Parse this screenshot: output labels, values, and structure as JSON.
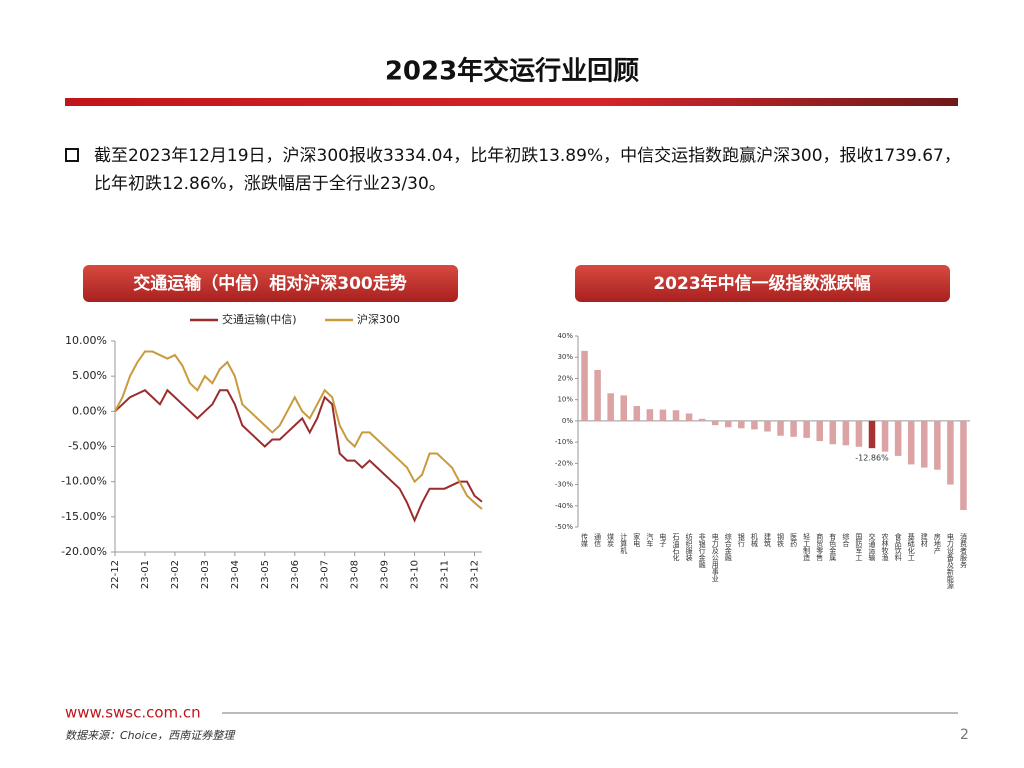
{
  "header": {
    "title": "2023年交运行业回顾"
  },
  "bullet": "截至2023年12月19日，沪深300报收3334.04，比年初跌13.89%，中信交运指数跑赢沪深300，报收1739.67，比年初跌12.86%，涨跌幅居于全行业23/30。",
  "chart_data": [
    {
      "type": "line",
      "title": "交通运输（中信）相对沪深300走势",
      "categories": [
        "22-12",
        null,
        null,
        null,
        "23-01",
        null,
        null,
        null,
        "23-02",
        null,
        null,
        null,
        "23-03",
        null,
        null,
        null,
        "23-04",
        null,
        null,
        null,
        "23-05",
        null,
        null,
        null,
        "23-06",
        null,
        null,
        null,
        "23-07",
        null,
        null,
        null,
        "23-08",
        null,
        null,
        null,
        "23-09",
        null,
        null,
        null,
        "23-10",
        null,
        null,
        null,
        "23-11",
        null,
        null,
        null,
        "23-12",
        null
      ],
      "series": [
        {
          "name": "交通运输(中信)",
          "color": "#9b2c2c",
          "values": [
            0,
            1,
            2,
            2.5,
            3,
            2,
            1,
            3,
            2,
            1,
            0,
            -1,
            0,
            1,
            3,
            3,
            1,
            -2,
            -3,
            -4,
            -5,
            -4,
            -4,
            -3,
            -2,
            -1,
            -3,
            -1,
            2,
            1,
            -6,
            -7,
            -7,
            -8,
            -7,
            -8,
            -9,
            -10,
            -11,
            -13,
            -15.5,
            -13,
            -11,
            -11,
            -11,
            -10.5,
            -10,
            -10,
            -12,
            -12.86
          ]
        },
        {
          "name": "沪深300",
          "color": "#c99a3e",
          "values": [
            0,
            2,
            5,
            7,
            8.5,
            8.5,
            8,
            7.5,
            8,
            6.5,
            4,
            3,
            5,
            4,
            6,
            7,
            5,
            1,
            0,
            -1,
            -2,
            -3,
            -2,
            0,
            2,
            0,
            -1,
            1,
            3,
            2,
            -2,
            -4,
            -5,
            -3,
            -3,
            -4,
            -5,
            -6,
            -7,
            -8,
            -10,
            -9,
            -6,
            -6,
            -7,
            -8,
            -10,
            -12,
            -13,
            -13.89
          ]
        }
      ],
      "ylim": [
        -20,
        10
      ],
      "yticks": [
        {
          "value": 10,
          "label": "10.00%"
        },
        {
          "value": 5,
          "label": "5.00%"
        },
        {
          "value": 0,
          "label": "0.00%"
        },
        {
          "value": -5,
          "label": "-5.00%"
        },
        {
          "value": -10,
          "label": "-10.00%"
        },
        {
          "value": -15,
          "label": "-15.00%"
        },
        {
          "value": -20,
          "label": "-20.00%"
        }
      ],
      "legend": "top"
    },
    {
      "type": "bar",
      "title": "2023年中信一级指数涨跌幅",
      "categories": [
        "传媒",
        "通信",
        "煤炭",
        "计算机",
        "家电",
        "汽车",
        "电子",
        "石油石化",
        "纺织服装",
        "非银行金融",
        "电力及公用事业",
        "综合金融",
        "银行",
        "机械",
        "建筑",
        "钢铁",
        "医药",
        "轻工制造",
        "商贸零售",
        "有色金属",
        "综合",
        "国防军工",
        "交通运输",
        "农林牧渔",
        "食品饮料",
        "基础化工",
        "建材",
        "房地产",
        "电力设备及新能源",
        "消费者服务"
      ],
      "values": [
        33,
        24,
        13,
        12,
        7,
        5.5,
        5.3,
        5,
        3.5,
        1,
        -2,
        -3,
        -3.5,
        -4,
        -5,
        -7,
        -7.5,
        -8,
        -9.5,
        -11,
        -11.5,
        -12.2,
        -12.86,
        -14.5,
        -16.5,
        -20.5,
        -22,
        -23,
        -30,
        -42
      ],
      "value_labels": [
        null,
        null,
        null,
        null,
        null,
        null,
        null,
        null,
        null,
        null,
        null,
        null,
        null,
        null,
        null,
        null,
        null,
        null,
        null,
        null,
        null,
        null,
        "-12.86%",
        null,
        null,
        null,
        null,
        null,
        null,
        null
      ],
      "colors": [
        "#dba3a3",
        "#dba3a3",
        "#dba3a3",
        "#dba3a3",
        "#dba3a3",
        "#dba3a3",
        "#dba3a3",
        "#dba3a3",
        "#dba3a3",
        "#dba3a3",
        "#dba3a3",
        "#dba3a3",
        "#dba3a3",
        "#dba3a3",
        "#dba3a3",
        "#dba3a3",
        "#dba3a3",
        "#dba3a3",
        "#dba3a3",
        "#dba3a3",
        "#dba3a3",
        "#dba3a3",
        "#a83232",
        "#dba3a3",
        "#dba3a3",
        "#dba3a3",
        "#dba3a3",
        "#dba3a3",
        "#dba3a3",
        "#dba3a3"
      ],
      "ylim": [
        -50,
        40
      ],
      "yticks": [
        {
          "value": 40,
          "label": "40%"
        },
        {
          "value": 30,
          "label": "30%"
        },
        {
          "value": 20,
          "label": "20%"
        },
        {
          "value": 10,
          "label": "10%"
        },
        {
          "value": 0,
          "label": "0%"
        },
        {
          "value": -10,
          "label": "-10%"
        },
        {
          "value": -20,
          "label": "-20%"
        },
        {
          "value": -30,
          "label": "-30%"
        },
        {
          "value": -40,
          "label": "-40%"
        },
        {
          "value": -50,
          "label": "-50%"
        }
      ]
    }
  ],
  "footer": {
    "website": "www.swsc.com.cn",
    "source": "数据来源：Choice，西南证券整理",
    "page": "2"
  }
}
